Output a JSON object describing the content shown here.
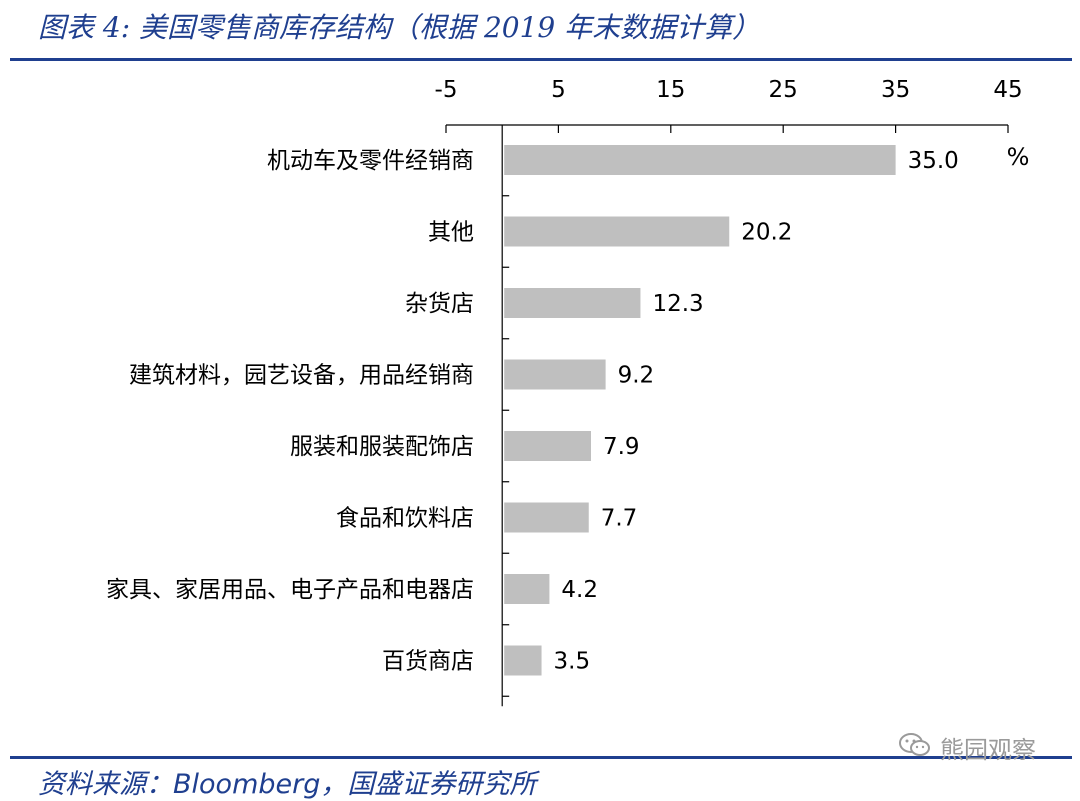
{
  "header": {
    "title": "图表 4:  美国零售商库存结构（根据 2019 年末数据计算）"
  },
  "footer": {
    "source_prefix": "资料来源：",
    "source_brand": "Bloomberg",
    "source_suffix": "，国盛证券研究所",
    "watermark": "熊园观察"
  },
  "colors": {
    "bar": "#bfbfbf",
    "accent": "#1f3f8f",
    "axis": "#000000"
  },
  "chart_data": {
    "type": "bar",
    "orientation": "horizontal",
    "categories": [
      "机动车及零件经销商",
      "其他",
      "杂货店",
      "建筑材料，园艺设备，用品经销商",
      "服装和服装配饰店",
      "食品和饮料店",
      "家具、家居用品、电子产品和电器店",
      "百货商店"
    ],
    "values": [
      35.0,
      20.2,
      12.3,
      9.2,
      7.9,
      7.7,
      4.2,
      3.5
    ],
    "value_labels": [
      "35.0",
      "20.2",
      "12.3",
      "9.2",
      "7.9",
      "7.7",
      "4.2",
      "3.5"
    ],
    "xlim": [
      -5,
      45
    ],
    "xticks": [
      -5,
      5,
      15,
      25,
      35,
      45
    ],
    "xtick_labels": [
      "-5",
      "5",
      "15",
      "25",
      "35",
      "45"
    ],
    "x_axis_position": "top",
    "unit": "%",
    "grid": false,
    "legend": "none"
  }
}
